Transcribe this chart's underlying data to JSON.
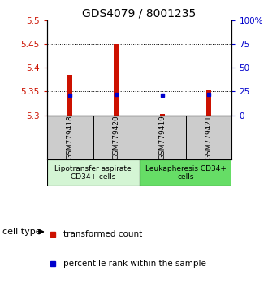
{
  "title": "GDS4079 / 8001235",
  "samples": [
    "GSM779418",
    "GSM779420",
    "GSM779419",
    "GSM779421"
  ],
  "red_values": [
    5.385,
    5.45,
    5.302,
    5.352
  ],
  "blue_values": [
    5.342,
    5.343,
    5.342,
    5.343
  ],
  "y_min": 5.3,
  "y_max": 5.5,
  "y_ticks_left": [
    5.3,
    5.35,
    5.4,
    5.45,
    5.5
  ],
  "y_ticks_right": [
    0,
    25,
    50,
    75,
    100
  ],
  "right_labels": [
    "0",
    "25",
    "50",
    "75",
    "100%"
  ],
  "dotted_lines": [
    5.35,
    5.4,
    5.45
  ],
  "group_labels": [
    "Lipotransfer aspirate\nCD34+ cells",
    "Leukapheresis CD34+\ncells"
  ],
  "group_colors_light": "#d4f5d4",
  "group_colors_dark": "#66dd66",
  "cell_type_label": "cell type",
  "legend_red": "transformed count",
  "legend_blue": "percentile rank within the sample",
  "bar_width": 0.1,
  "red_color": "#cc1100",
  "blue_color": "#0000cc",
  "bg_plot": "#ffffff",
  "bg_sample_row": "#cccccc",
  "title_fontsize": 10,
  "tick_fontsize": 7.5,
  "sample_fontsize": 6.5,
  "group_fontsize": 6.5,
  "legend_fontsize": 7.5
}
